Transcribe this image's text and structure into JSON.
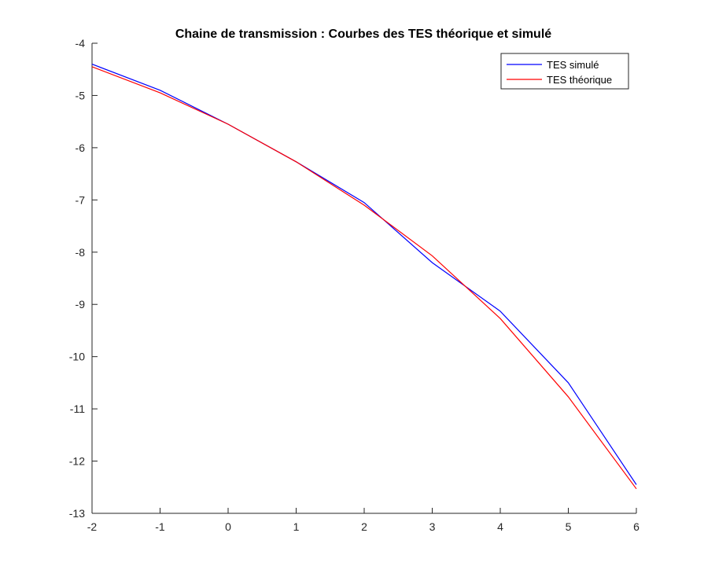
{
  "chart_data": {
    "type": "line",
    "title": "Chaine de transmission : Courbes des TES théorique et simulé",
    "xlabel": "",
    "ylabel": "",
    "x": [
      -2,
      -1,
      0,
      1,
      2,
      3,
      4,
      5,
      6
    ],
    "xlim": [
      -2,
      6
    ],
    "ylim": [
      -13,
      -4
    ],
    "xticks": [
      "-2",
      "-1",
      "0",
      "1",
      "2",
      "3",
      "4",
      "5",
      "6"
    ],
    "yticks": [
      "-4",
      "-5",
      "-6",
      "-7",
      "-8",
      "-9",
      "-10",
      "-11",
      "-12",
      "-13"
    ],
    "grid": false,
    "legend_position": "top-right",
    "series": [
      {
        "name": "TES simulé",
        "color": "#0000ff",
        "values": [
          -4.4,
          -4.9,
          -5.55,
          -6.27,
          -7.05,
          -8.2,
          -9.13,
          -10.5,
          -12.45
        ]
      },
      {
        "name": "TES théorique",
        "color": "#ff0000",
        "values": [
          -4.45,
          -4.95,
          -5.55,
          -6.27,
          -7.1,
          -8.07,
          -9.27,
          -10.77,
          -12.53
        ]
      }
    ]
  }
}
